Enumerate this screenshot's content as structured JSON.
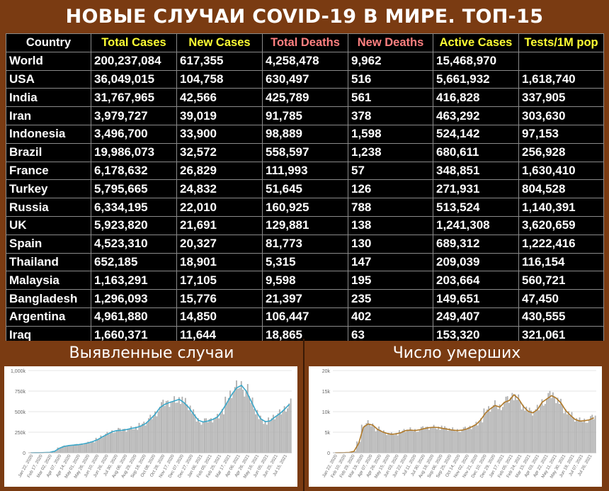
{
  "title": "НОВЫЕ СЛУЧАИ COVID-19 В МИРЕ. ТОП-15",
  "table": {
    "headers": [
      "Country",
      "Total Cases",
      "New Cases",
      "Total Deaths",
      "New Deaths",
      "Active Cases",
      "Tests/1M pop"
    ],
    "header_colors": [
      "#ffffff",
      "#ffff33",
      "#ffff33",
      "#ff8080",
      "#ff8080",
      "#ffff33",
      "#ffff33"
    ],
    "rows": [
      [
        "World",
        "200,237,084",
        "617,355",
        "4,258,478",
        "9,962",
        "15,468,970",
        ""
      ],
      [
        "USA",
        "36,049,015",
        "104,758",
        "630,497",
        "516",
        "5,661,932",
        "1,618,740"
      ],
      [
        "India",
        "31,767,965",
        "42,566",
        "425,789",
        "561",
        "416,828",
        "337,905"
      ],
      [
        "Iran",
        "3,979,727",
        "39,019",
        "91,785",
        "378",
        "463,292",
        "303,630"
      ],
      [
        "Indonesia",
        "3,496,700",
        "33,900",
        "98,889",
        "1,598",
        "524,142",
        "97,153"
      ],
      [
        "Brazil",
        "19,986,073",
        "32,572",
        "558,597",
        "1,238",
        "680,611",
        "256,928"
      ],
      [
        "France",
        "6,178,632",
        "26,829",
        "111,993",
        "57",
        "348,851",
        "1,630,410"
      ],
      [
        "Turkey",
        "5,795,665",
        "24,832",
        "51,645",
        "126",
        "271,931",
        "804,528"
      ],
      [
        "Russia",
        "6,334,195",
        "22,010",
        "160,925",
        "788",
        "513,524",
        "1,140,391"
      ],
      [
        "UK",
        "5,923,820",
        "21,691",
        "129,881",
        "138",
        "1,241,308",
        "3,620,659"
      ],
      [
        "Spain",
        "4,523,310",
        "20,327",
        "81,773",
        "130",
        "689,312",
        "1,222,416"
      ],
      [
        "Thailand",
        "652,185",
        "18,901",
        "5,315",
        "147",
        "209,039",
        "116,154"
      ],
      [
        "Malaysia",
        "1,163,291",
        "17,105",
        "9,598",
        "195",
        "203,664",
        "560,721"
      ],
      [
        "Bangladesh",
        "1,296,093",
        "15,776",
        "21,397",
        "235",
        "149,651",
        "47,450"
      ],
      [
        "Argentina",
        "4,961,880",
        "14,850",
        "106,447",
        "402",
        "249,407",
        "430,555"
      ],
      [
        "Iraq",
        "1,660,371",
        "11,644",
        "18,865",
        "63",
        "153,320",
        "321,061"
      ]
    ]
  },
  "panels": {
    "cases_label": "Выявленные случаи",
    "deaths_label": "Число умерших"
  },
  "chart_data": [
    {
      "type": "bar",
      "title": "Выявленные случаи",
      "ylim": [
        0,
        1000000
      ],
      "yticks": [
        "0",
        "250k",
        "500k",
        "750k",
        "1,000k"
      ],
      "xticks": [
        "Jan 22, 2020",
        "Feb 17, 2020",
        "Mar 02, 2020",
        "Apr 07, 2020",
        "Apr 14, 2020",
        "May 01, 2020",
        "May 26, 2020",
        "Jun 10, 2020",
        "Jun 26, 2020",
        "Jul 30, 2020",
        "Aug 06, 2020",
        "Aug 29, 2020",
        "Sep 18, 2020",
        "Oct 08, 2020",
        "Oct 28, 2020",
        "Nov 17, 2020",
        "Dec 07, 2020",
        "Dec 27, 2020",
        "Jan 06, 2021",
        "Feb 05, 2021",
        "Feb 25, 2021",
        "Mar 17, 2021",
        "Apr 06, 2021",
        "Apr 26, 2021",
        "May 16, 2021",
        "Jun 05, 2021",
        "Jun 25, 2021",
        "Jul 15, 2021"
      ],
      "bar_color": "#b0b0b0",
      "line_color": "#3aa7c9",
      "series": [
        {
          "values": [
            0,
            500,
            1500,
            2500,
            5000,
            20000,
            60000,
            80000,
            90000,
            95000,
            100000,
            110000,
            125000,
            140000,
            165000,
            200000,
            230000,
            260000,
            275000,
            275000,
            285000,
            300000,
            310000,
            330000,
            360000,
            420000,
            480000,
            560000,
            600000,
            620000,
            640000,
            660000,
            620000,
            560000,
            480000,
            400000,
            380000,
            390000,
            410000,
            440000,
            520000,
            620000,
            720000,
            800000,
            830000,
            760000,
            640000,
            520000,
            420000,
            380000,
            390000,
            440000,
            480000,
            540000,
            600000
          ]
        },
        {
          "values": [
            0,
            500,
            1200,
            2200,
            5000,
            18000,
            55000,
            78000,
            88000,
            93000,
            98000,
            108000,
            120000,
            137000,
            160000,
            195000,
            225000,
            255000,
            270000,
            272000,
            282000,
            296000,
            305000,
            325000,
            355000,
            410000,
            470000,
            550000,
            590000,
            612000,
            630000,
            650000,
            610000,
            550000,
            470000,
            395000,
            375000,
            385000,
            405000,
            435000,
            515000,
            610000,
            710000,
            790000,
            820000,
            750000,
            630000,
            510000,
            415000,
            378000,
            388000,
            435000,
            475000,
            530000,
            590000
          ]
        }
      ]
    },
    {
      "type": "bar",
      "title": "Число умерших",
      "ylim": [
        0,
        20000
      ],
      "yticks": [
        "0",
        "5k",
        "10k",
        "15k",
        "20k"
      ],
      "xticks": [
        "Jan 22, 2020",
        "Feb 10, 2020",
        "Feb 29, 2020",
        "Mar 19, 2020",
        "Apr 07, 2020",
        "Apr 26, 2020",
        "May 15, 2020",
        "Jun 03, 2020",
        "Jun 22, 2020",
        "Jul 11, 2020",
        "Jul 30, 2020",
        "Aug 18, 2020",
        "Sep 06, 2020",
        "Sep 25, 2020",
        "Oct 14, 2020",
        "Nov 02, 2020",
        "Nov 21, 2020",
        "Dec 10, 2020",
        "Dec 29, 2020",
        "Jan 17, 2021",
        "Feb 05, 2021",
        "Feb 24, 2021",
        "Mar 15, 2021",
        "Apr 03, 2021",
        "Apr 22, 2021",
        "May 11, 2021",
        "May 30, 2021",
        "Jun 18, 2021",
        "Jul 07, 2021",
        "Jul 26, 2021"
      ],
      "bar_color": "#b0b0b0",
      "line_color": "#b07a2a",
      "series": [
        {
          "values": [
            0,
            10,
            50,
            100,
            400,
            2500,
            6500,
            7200,
            6800,
            5800,
            5200,
            4800,
            4600,
            4700,
            5000,
            5500,
            5600,
            5500,
            5700,
            6000,
            6200,
            6300,
            6200,
            6000,
            5800,
            5600,
            5500,
            5600,
            5900,
            6400,
            7000,
            8200,
            9800,
            10800,
            11600,
            11200,
            12400,
            12800,
            14200,
            13200,
            11400,
            10200,
            9800,
            10600,
            12400,
            13200,
            14000,
            13400,
            12200,
            10400,
            9200,
            8200,
            7800,
            7900,
            8100,
            8600
          ]
        },
        {
          "values": [
            0,
            10,
            40,
            90,
            350,
            2300,
            6200,
            7000,
            6700,
            5700,
            5100,
            4700,
            4500,
            4600,
            4900,
            5400,
            5500,
            5400,
            5600,
            5900,
            6100,
            6200,
            6100,
            5900,
            5700,
            5500,
            5400,
            5500,
            5800,
            6300,
            6900,
            8100,
            9700,
            10700,
            11500,
            11100,
            12300,
            12700,
            14100,
            13100,
            11300,
            10100,
            9700,
            10500,
            12300,
            13100,
            13900,
            13300,
            12100,
            10300,
            9100,
            8100,
            7700,
            7800,
            8000,
            8500
          ]
        }
      ]
    }
  ]
}
